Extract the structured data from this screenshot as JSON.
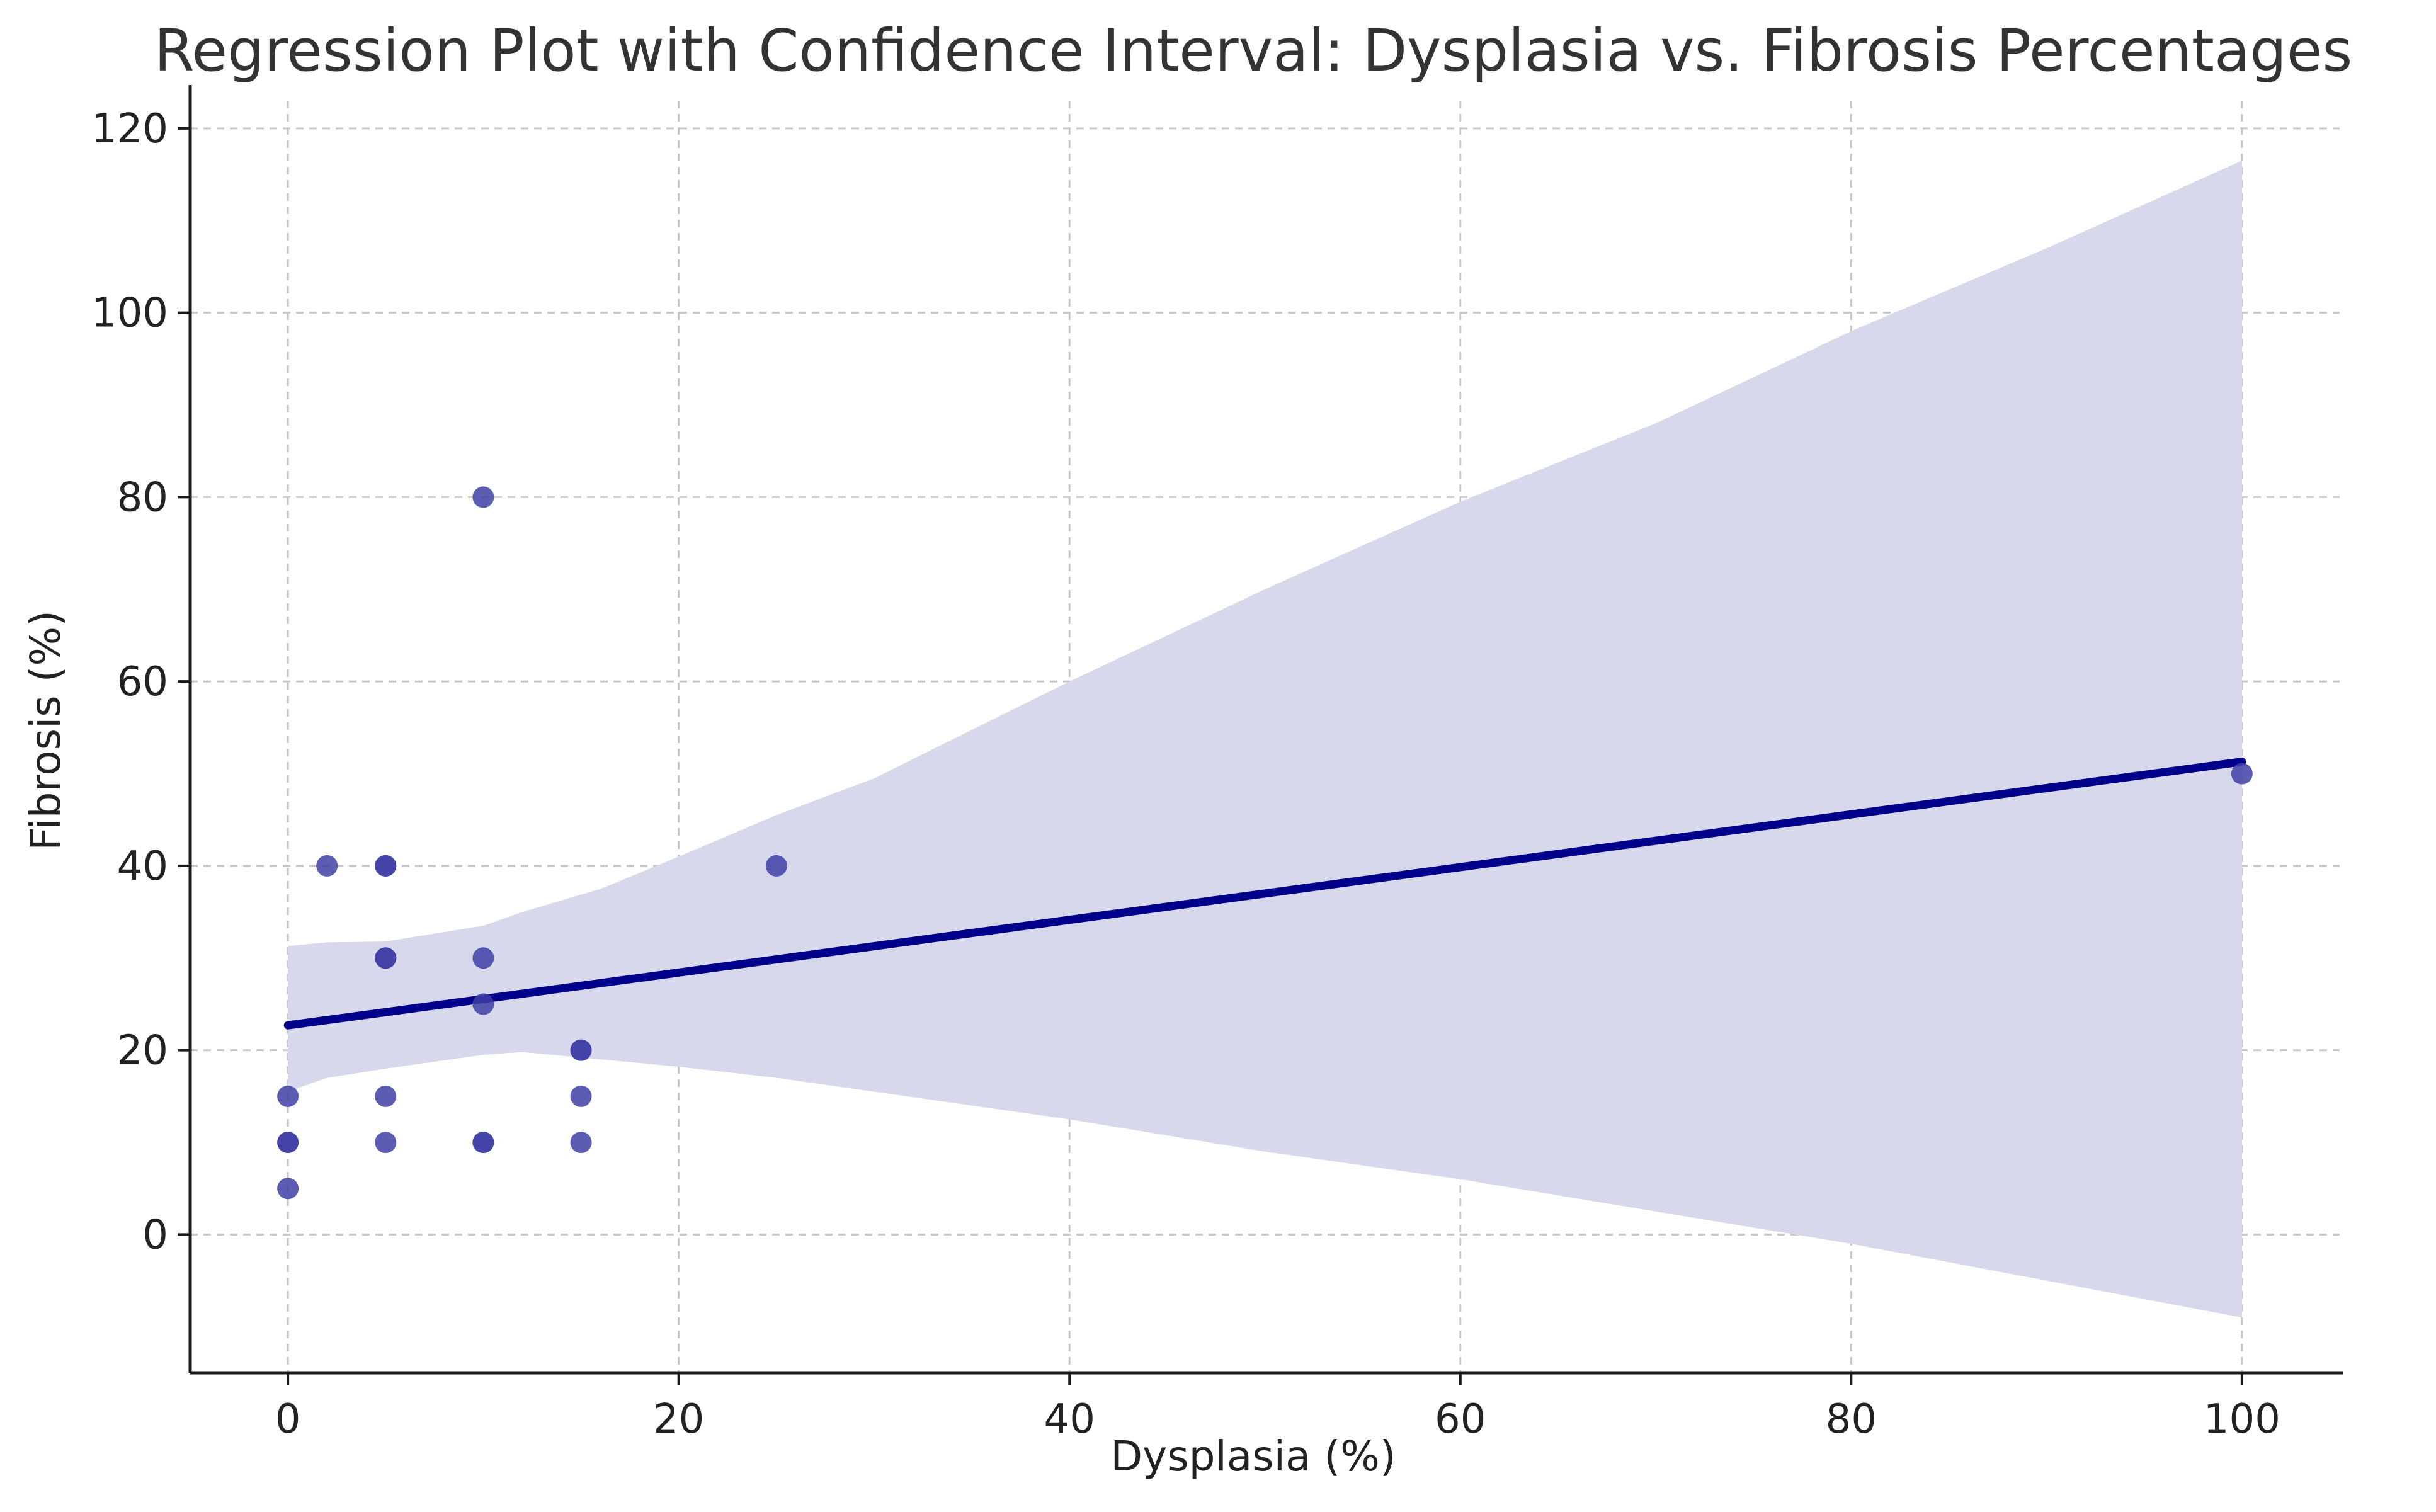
{
  "chart_data": {
    "type": "scatter",
    "title": "Regression Plot with Confidence Interval: Dysplasia vs. Fibrosis Percentages",
    "xlabel": "Dysplasia (%)",
    "ylabel": "Fibrosis (%)",
    "xlim": [
      -5,
      105
    ],
    "ylim": [
      -15,
      123
    ],
    "xticks": [
      0,
      20,
      40,
      60,
      80,
      100
    ],
    "yticks": [
      0,
      20,
      40,
      60,
      80,
      100,
      120
    ],
    "grid": true,
    "colors": {
      "points": "#3f3fa6",
      "line": "#00008b",
      "band": "#d8d8ed",
      "grid": "#c8c8c8",
      "axis": "#1a1a1a"
    },
    "points": [
      {
        "x": 0,
        "y": 5
      },
      {
        "x": 0,
        "y": 10
      },
      {
        "x": 0,
        "y": 10
      },
      {
        "x": 0,
        "y": 15
      },
      {
        "x": 2,
        "y": 40
      },
      {
        "x": 5,
        "y": 10
      },
      {
        "x": 5,
        "y": 15
      },
      {
        "x": 5,
        "y": 30
      },
      {
        "x": 5,
        "y": 30
      },
      {
        "x": 5,
        "y": 40
      },
      {
        "x": 5,
        "y": 40
      },
      {
        "x": 10,
        "y": 10
      },
      {
        "x": 10,
        "y": 10
      },
      {
        "x": 10,
        "y": 25
      },
      {
        "x": 10,
        "y": 30
      },
      {
        "x": 10,
        "y": 80
      },
      {
        "x": 15,
        "y": 10
      },
      {
        "x": 15,
        "y": 15
      },
      {
        "x": 15,
        "y": 20
      },
      {
        "x": 15,
        "y": 20
      },
      {
        "x": 25,
        "y": 40
      },
      {
        "x": 100,
        "y": 50
      }
    ],
    "regression_line": {
      "x": [
        0,
        100
      ],
      "y": [
        22.7,
        51.3
      ]
    },
    "confidence_band": {
      "x": [
        0,
        2,
        5,
        10,
        12,
        16,
        20,
        25,
        30,
        40,
        50,
        60,
        70,
        80,
        90,
        100
      ],
      "upper": [
        31.3,
        31.7,
        31.8,
        33.5,
        35.0,
        37.5,
        41.0,
        45.5,
        49.5,
        60.0,
        70.0,
        79.5,
        88.0,
        98.0,
        107.0,
        116.5
      ],
      "lower": [
        15.5,
        17.0,
        18.0,
        19.5,
        19.8,
        19.0,
        18.2,
        17.0,
        15.5,
        12.5,
        9.0,
        6.0,
        2.5,
        -1.0,
        -5.0,
        -9.0
      ]
    }
  }
}
